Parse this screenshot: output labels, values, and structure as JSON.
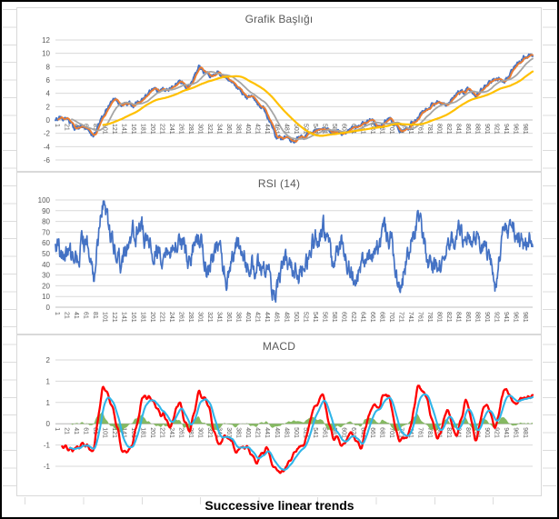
{
  "figure": {
    "caption": "Successive linear trends"
  },
  "chart_data": [
    {
      "type": "line",
      "title": "Grafik Başlığı",
      "xlabel": "",
      "ylabel": "",
      "ylim": [
        -6,
        12
      ],
      "grid": true,
      "legend": "none",
      "x_labels_position": "zero-line",
      "categories": [
        "1",
        "21",
        "41",
        "61",
        "81",
        "101",
        "121",
        "141",
        "161",
        "181",
        "201",
        "221",
        "241",
        "261",
        "281",
        "301",
        "321",
        "341",
        "361",
        "381",
        "401",
        "421",
        "441",
        "461",
        "481",
        "501",
        "521",
        "541",
        "561",
        "581",
        "601",
        "621",
        "641",
        "661",
        "681",
        "701",
        "721",
        "741",
        "761",
        "781",
        "801",
        "821",
        "841",
        "861",
        "881",
        "901",
        "921",
        "941",
        "961",
        "981"
      ],
      "y_ticks": {
        "labels": [
          "12",
          "10",
          "8",
          "6",
          "4",
          "2",
          "0",
          "-2",
          "-4",
          "-6"
        ],
        "values": [
          12,
          10,
          8,
          6,
          4,
          2,
          0,
          -2,
          -4,
          -6
        ]
      },
      "sampling_note": "series values sampled every 20 categories (1..981)",
      "series": [
        {
          "name": "price",
          "color": "#4472C4",
          "width": 1.9,
          "keypoints": [
            0.0,
            0.6,
            -1.3,
            -1.1,
            -2.3,
            0.6,
            3.1,
            2.5,
            2.1,
            2.7,
            4.3,
            4.3,
            4.6,
            5.7,
            4.9,
            7.9,
            6.6,
            7.0,
            6.2,
            5.3,
            3.5,
            2.9,
            1.3,
            -2.4,
            -2.7,
            -3.3,
            -2.4,
            -2.1,
            -1.0,
            -1.7,
            -1.9,
            -1.0,
            -0.9,
            0.0,
            -1.0,
            0.3,
            -1.7,
            -0.9,
            0.6,
            1.9,
            2.7,
            2.3,
            3.8,
            4.6,
            3.9,
            5.3,
            6.2,
            5.8,
            7.8,
            9.4
          ],
          "noise": {
            "seed": 7,
            "amp": 0.5,
            "persist": 0.75
          }
        },
        {
          "name": "ma-fast",
          "color": "#ED7D31",
          "width": 1.9,
          "derived": {
            "op": "sma",
            "of": "price",
            "window": 7
          }
        },
        {
          "name": "ma-mid",
          "color": "#A5A5A5",
          "width": 1.8,
          "derived": {
            "op": "sma",
            "of": "price",
            "window": 35
          }
        },
        {
          "name": "ma-slow",
          "color": "#FFC000",
          "width": 2.2,
          "derived": {
            "op": "sma",
            "of": "price",
            "window": 101
          }
        }
      ]
    },
    {
      "type": "line",
      "title": "RSI (14)",
      "xlabel": "",
      "ylabel": "",
      "ylim": [
        0,
        100
      ],
      "grid": true,
      "legend": "none",
      "x_labels_position": "below-plot",
      "categories": [
        "1",
        "21",
        "41",
        "61",
        "81",
        "101",
        "121",
        "141",
        "161",
        "181",
        "201",
        "221",
        "241",
        "261",
        "281",
        "301",
        "321",
        "341",
        "361",
        "381",
        "401",
        "421",
        "441",
        "461",
        "481",
        "501",
        "521",
        "541",
        "561",
        "581",
        "601",
        "621",
        "641",
        "661",
        "681",
        "701",
        "721",
        "741",
        "761",
        "781",
        "801",
        "821",
        "841",
        "861",
        "881",
        "901",
        "921",
        "941",
        "961",
        "981"
      ],
      "y_ticks": {
        "labels": [
          "100",
          "90",
          "80",
          "70",
          "60",
          "50",
          "40",
          "30",
          "20",
          "10",
          "0"
        ],
        "values": [
          100,
          90,
          80,
          70,
          60,
          50,
          40,
          30,
          20,
          10,
          0
        ]
      },
      "sampling_note": "series values sampled every 20 categories (1..981)",
      "series": [
        {
          "name": "rsi",
          "color": "#4472C4",
          "width": 1.7,
          "keypoints": [
            57,
            45,
            42,
            62,
            30,
            97,
            60,
            42,
            65,
            75,
            55,
            50,
            55,
            65,
            40,
            70,
            30,
            60,
            25,
            60,
            38,
            40,
            35,
            8,
            45,
            30,
            38,
            60,
            74,
            40,
            60,
            28,
            37,
            48,
            62,
            70,
            14,
            55,
            80,
            42,
            35,
            52,
            70,
            55,
            60,
            55,
            22,
            72,
            75,
            60
          ],
          "noise": {
            "seed": 42,
            "amp": 16,
            "persist": 0.7
          },
          "clamp": [
            3,
            99
          ]
        }
      ]
    },
    {
      "type": "line",
      "title": "MACD",
      "xlabel": "",
      "ylabel": "",
      "ylim": [
        -1.3,
        1.75
      ],
      "grid": true,
      "legend": "none",
      "x_labels_position": "zero-line",
      "categories": [
        "1",
        "21",
        "41",
        "61",
        "81",
        "101",
        "121",
        "141",
        "161",
        "181",
        "201",
        "221",
        "241",
        "261",
        "281",
        "301",
        "321",
        "341",
        "361",
        "381",
        "401",
        "421",
        "441",
        "461",
        "481",
        "501",
        "521",
        "541",
        "561",
        "581",
        "601",
        "621",
        "641",
        "661",
        "681",
        "701",
        "721",
        "741",
        "761",
        "781",
        "801",
        "821",
        "841",
        "861",
        "881",
        "901",
        "921",
        "941",
        "961",
        "981"
      ],
      "y_ticks": {
        "labels": [
          "2",
          "1",
          "1",
          "0",
          "-1",
          "-1"
        ],
        "values": [
          1.5,
          1.0,
          0.5,
          0,
          -0.5,
          -1.0
        ]
      },
      "sampling_note": "series values sampled every 20 categories (1..981); signal = smoothed MACD; histogram = MACD − signal",
      "series": [
        {
          "name": "histogram",
          "color": "#70AD47",
          "area": true,
          "derived": {
            "op": "hist",
            "minuend": "macd",
            "subtrahend": "signal",
            "scale": 0.45
          }
        },
        {
          "name": "macd",
          "color": "#FF0000",
          "width": 2.3,
          "keypoints": [
            -0.45,
            -0.5,
            -0.6,
            -0.55,
            -0.6,
            0.95,
            0.3,
            -0.7,
            -0.6,
            0.5,
            0.6,
            0.3,
            -0.1,
            0.45,
            -0.3,
            0.85,
            0.4,
            -0.5,
            -0.25,
            -0.65,
            -0.55,
            -0.85,
            -0.6,
            -1.0,
            -1.15,
            -0.6,
            -0.5,
            0.35,
            0.7,
            -0.3,
            -0.5,
            -0.25,
            -0.55,
            0.35,
            0.5,
            0.7,
            -0.45,
            -0.25,
            0.9,
            0.5,
            -0.5,
            0.3,
            -0.3,
            0.55,
            -0.4,
            0.5,
            -0.1,
            0.8,
            0.45,
            0.6
          ],
          "noise": {
            "seed": 99,
            "amp": 0.14,
            "persist": 0.75
          },
          "smoothing": 5,
          "start_index": 14
        },
        {
          "name": "signal",
          "color": "#2FB5E9",
          "width": 2.1,
          "derived": {
            "op": "ema",
            "of": "macd",
            "alpha": 0.1,
            "start_index": 30
          }
        }
      ]
    }
  ],
  "colors": {
    "grid": "#D9D9D9",
    "axis": "#BFBFBF",
    "tick_text": "#595959",
    "title_text": "#595959"
  }
}
